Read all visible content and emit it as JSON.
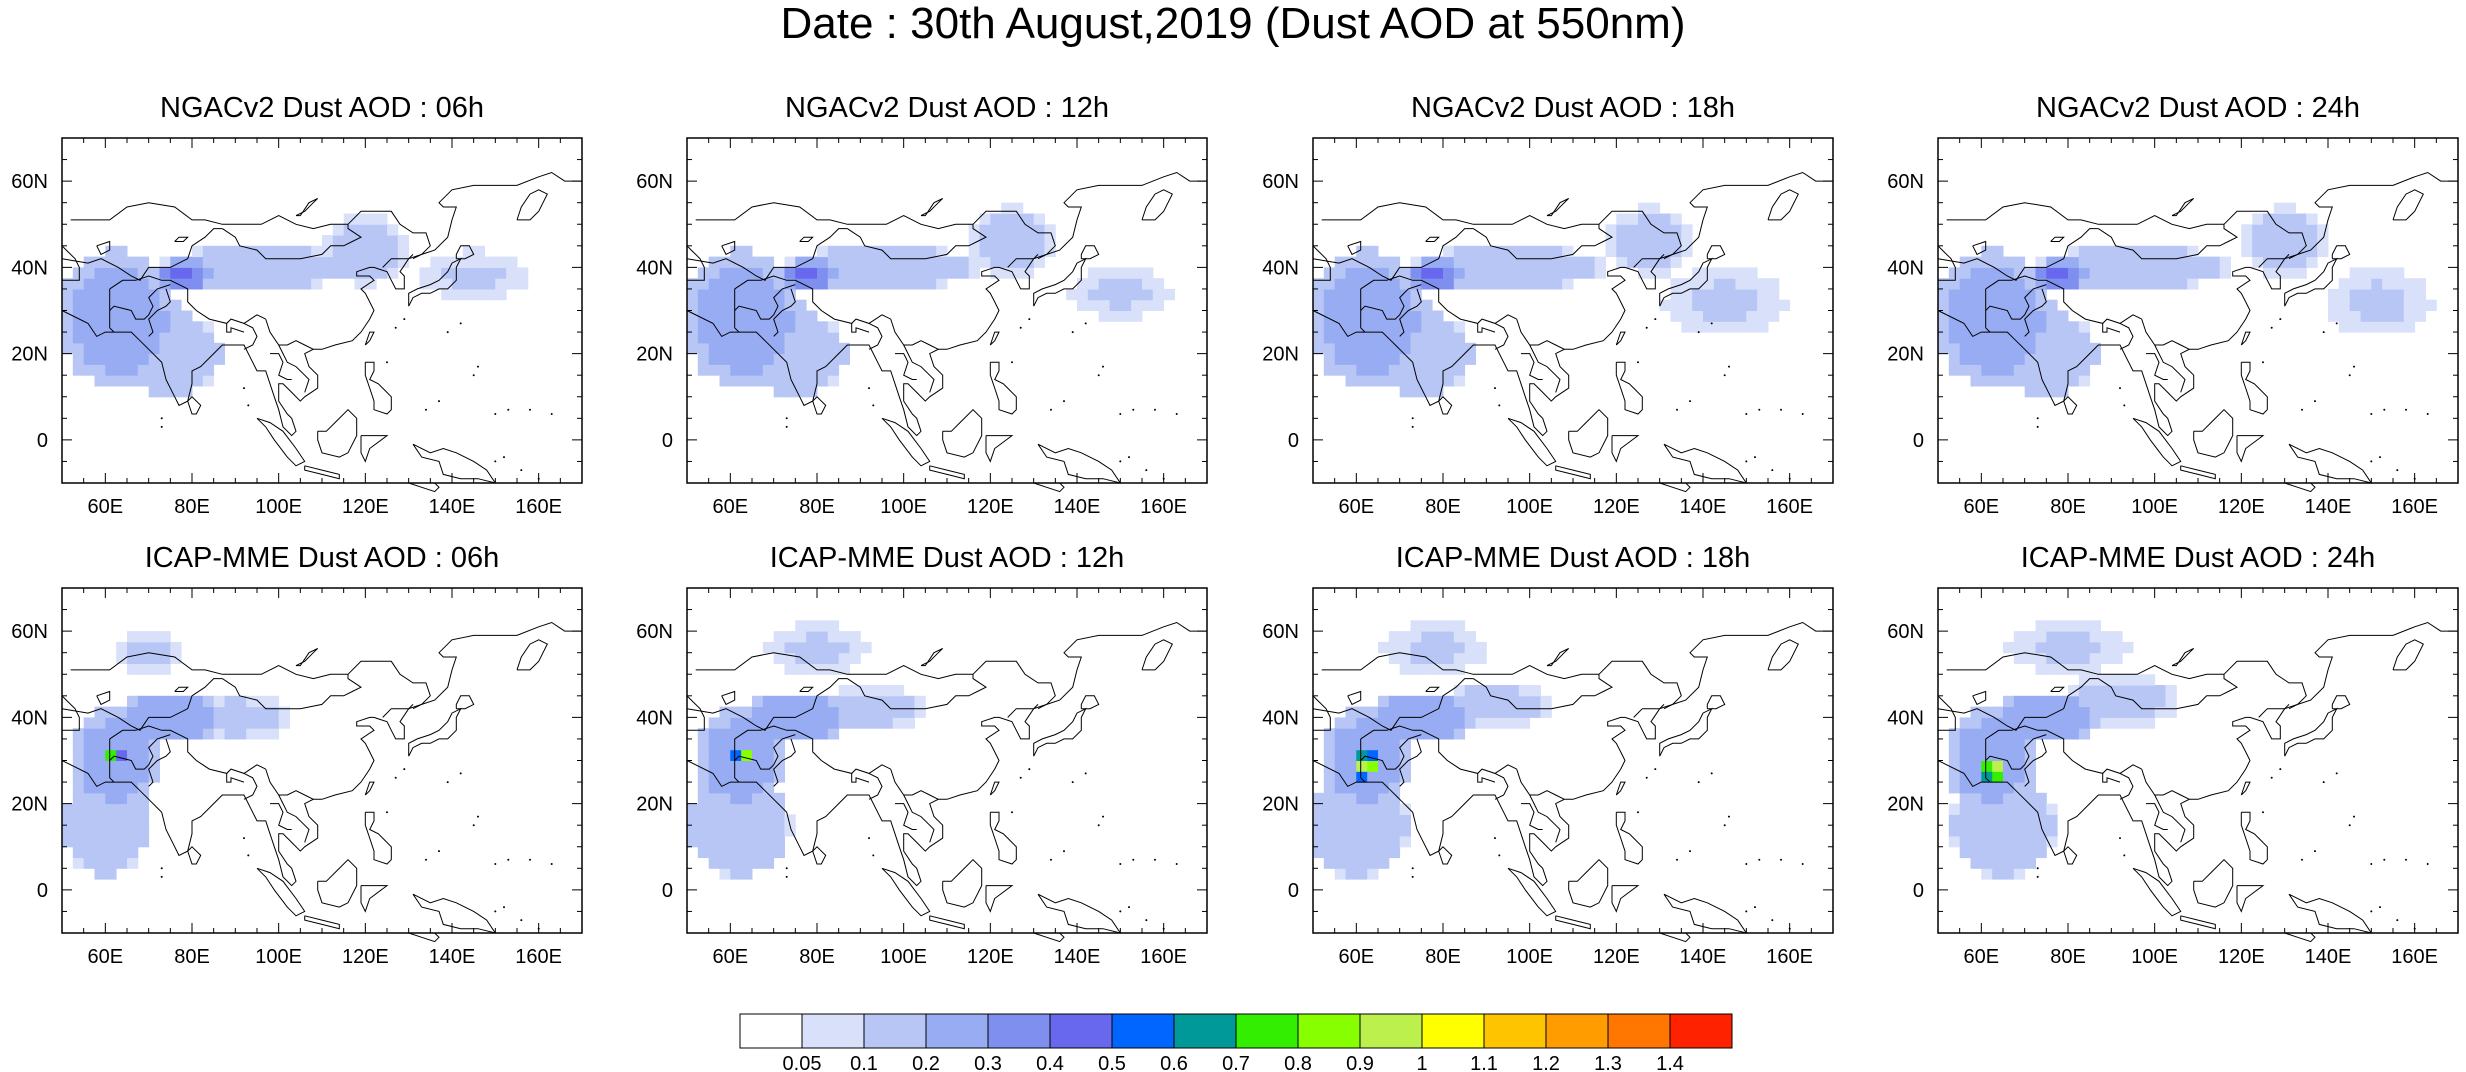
{
  "title": "Date : 30th August,2019 (Dust AOD at 550nm)",
  "panels": [
    {
      "title": "NGACv2 Dust AOD : 06h",
      "model": "NGACv2",
      "lead_hour": "06h"
    },
    {
      "title": "NGACv2 Dust AOD : 12h",
      "model": "NGACv2",
      "lead_hour": "12h"
    },
    {
      "title": "NGACv2 Dust AOD : 18h",
      "model": "NGACv2",
      "lead_hour": "18h"
    },
    {
      "title": "NGACv2 Dust AOD : 24h",
      "model": "NGACv2",
      "lead_hour": "24h"
    },
    {
      "title": "ICAP-MME Dust AOD : 06h",
      "model": "ICAP-MME",
      "lead_hour": "06h"
    },
    {
      "title": "ICAP-MME Dust AOD : 12h",
      "model": "ICAP-MME",
      "lead_hour": "12h"
    },
    {
      "title": "ICAP-MME Dust AOD : 18h",
      "model": "ICAP-MME",
      "lead_hour": "18h"
    },
    {
      "title": "ICAP-MME Dust AOD : 24h",
      "model": "ICAP-MME",
      "lead_hour": "24h"
    }
  ],
  "map_extent": {
    "lon": [
      50,
      170
    ],
    "lat": [
      -10,
      70
    ]
  },
  "x_ticks": [
    {
      "value": 60,
      "label": "60E"
    },
    {
      "value": 80,
      "label": "80E"
    },
    {
      "value": 100,
      "label": "100E"
    },
    {
      "value": 120,
      "label": "120E"
    },
    {
      "value": 140,
      "label": "140E"
    },
    {
      "value": 160,
      "label": "160E"
    }
  ],
  "y_ticks": [
    {
      "value": 0,
      "label": "0"
    },
    {
      "value": 20,
      "label": "20N"
    },
    {
      "value": 40,
      "label": "40N"
    },
    {
      "value": 60,
      "label": "60N"
    }
  ],
  "colorbar": {
    "labels": [
      "0.05",
      "0.1",
      "0.2",
      "0.3",
      "0.4",
      "0.5",
      "0.6",
      "0.7",
      "0.8",
      "0.9",
      "1",
      "1.1",
      "1.2",
      "1.3",
      "1.4"
    ],
    "colors": [
      "#ffffff",
      "#d9e1fa",
      "#b8c6f6",
      "#98acf3",
      "#7f8ff0",
      "#6868ee",
      "#0066ff",
      "#009999",
      "#33ee00",
      "#88ff00",
      "#bbf04d",
      "#ffff00",
      "#ffc400",
      "#ff9d00",
      "#ff7700",
      "#ff2200"
    ]
  },
  "chart_data": {
    "type": "heatmap",
    "description_units": "Dust AOD at 550nm",
    "dust_regions": [
      {
        "name": "ngac_06h",
        "blobs": [
          [
            63,
            28,
            14,
            16,
            0.3
          ],
          [
            78,
            38,
            6,
            4,
            0.45
          ],
          [
            95,
            40,
            22,
            5,
            0.2
          ],
          [
            120,
            44,
            10,
            8,
            0.15
          ],
          [
            75,
            20,
            12,
            10,
            0.2
          ],
          [
            145,
            38,
            12,
            6,
            0.12
          ]
        ]
      },
      {
        "name": "ngac_12h",
        "blobs": [
          [
            63,
            28,
            14,
            16,
            0.3
          ],
          [
            78,
            38,
            6,
            4,
            0.45
          ],
          [
            95,
            40,
            22,
            5,
            0.2
          ],
          [
            125,
            46,
            10,
            8,
            0.15
          ],
          [
            75,
            20,
            12,
            10,
            0.2
          ],
          [
            150,
            34,
            12,
            6,
            0.12
          ]
        ]
      },
      {
        "name": "ngac_18h",
        "blobs": [
          [
            63,
            28,
            14,
            16,
            0.3
          ],
          [
            78,
            38,
            6,
            4,
            0.45
          ],
          [
            95,
            40,
            22,
            5,
            0.2
          ],
          [
            128,
            46,
            10,
            8,
            0.15
          ],
          [
            75,
            20,
            12,
            10,
            0.2
          ],
          [
            145,
            32,
            14,
            8,
            0.12
          ]
        ]
      },
      {
        "name": "ngac_24h",
        "blobs": [
          [
            63,
            28,
            14,
            16,
            0.3
          ],
          [
            78,
            38,
            6,
            4,
            0.45
          ],
          [
            95,
            40,
            22,
            5,
            0.2
          ],
          [
            130,
            46,
            10,
            8,
            0.15
          ],
          [
            75,
            20,
            12,
            10,
            0.2
          ],
          [
            152,
            32,
            12,
            8,
            0.12
          ]
        ]
      },
      {
        "name": "icap_06h",
        "blobs": [
          [
            62,
            31,
            2,
            2,
            0.8
          ],
          [
            62,
            30,
            10,
            12,
            0.3
          ],
          [
            75,
            40,
            14,
            6,
            0.3
          ],
          [
            90,
            40,
            14,
            5,
            0.15
          ],
          [
            60,
            15,
            10,
            12,
            0.2
          ],
          [
            70,
            55,
            8,
            6,
            0.12
          ]
        ]
      },
      {
        "name": "icap_12h",
        "blobs": [
          [
            63,
            31,
            2,
            2,
            0.9
          ],
          [
            62,
            30,
            10,
            12,
            0.3
          ],
          [
            75,
            40,
            14,
            6,
            0.3
          ],
          [
            92,
            42,
            14,
            5,
            0.15
          ],
          [
            62,
            15,
            12,
            12,
            0.2
          ],
          [
            80,
            56,
            12,
            6,
            0.12
          ]
        ]
      },
      {
        "name": "icap_18h",
        "blobs": [
          [
            62,
            29,
            3,
            3,
            1.0
          ],
          [
            62,
            30,
            10,
            12,
            0.3
          ],
          [
            75,
            40,
            14,
            6,
            0.3
          ],
          [
            92,
            43,
            14,
            5,
            0.15
          ],
          [
            60,
            15,
            12,
            12,
            0.2
          ],
          [
            78,
            56,
            12,
            6,
            0.12
          ]
        ]
      },
      {
        "name": "icap_24h",
        "blobs": [
          [
            63,
            28,
            3,
            3,
            1.0
          ],
          [
            62,
            30,
            10,
            12,
            0.3
          ],
          [
            75,
            40,
            14,
            6,
            0.3
          ],
          [
            92,
            44,
            14,
            6,
            0.15
          ],
          [
            65,
            15,
            12,
            12,
            0.2
          ],
          [
            80,
            56,
            14,
            6,
            0.12
          ]
        ]
      }
    ]
  }
}
